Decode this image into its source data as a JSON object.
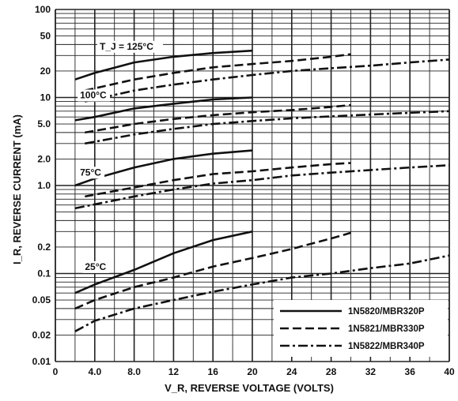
{
  "chart_data": {
    "type": "line",
    "title": "",
    "xlabel": "V_R, REVERSE VOLTAGE (VOLTS)",
    "ylabel": "I_R, REVERSE CURRENT (mA)",
    "xlim": [
      0,
      40
    ],
    "ylim": [
      0.01,
      100
    ],
    "yscale": "log",
    "grid": true,
    "x_ticks": [
      "0",
      "4.0",
      "8.0",
      "12",
      "16",
      "20",
      "24",
      "28",
      "32",
      "36",
      "40"
    ],
    "y_ticks": [
      {
        "value": 100,
        "label": "100"
      },
      {
        "value": 50,
        "label": "50"
      },
      {
        "value": 20,
        "label": "20"
      },
      {
        "value": 10,
        "label": "10"
      },
      {
        "value": 5,
        "label": "5.0"
      },
      {
        "value": 2,
        "label": "2.0"
      },
      {
        "value": 1,
        "label": "1.0"
      },
      {
        "value": 0.2,
        "label": "0.2"
      },
      {
        "value": 0.1,
        "label": "0.1"
      },
      {
        "value": 0.05,
        "label": "0.05"
      },
      {
        "value": 0.02,
        "label": "0.02"
      },
      {
        "value": 0.01,
        "label": "0.01"
      }
    ],
    "temperature_labels": [
      {
        "text": "T_J = 125°C",
        "x": 4.5,
        "y": 35
      },
      {
        "text": "100°C",
        "x": 2.5,
        "y": 9.8
      },
      {
        "text": "75°C",
        "x": 2.5,
        "y": 1.3
      },
      {
        "text": "25°C",
        "x": 3.0,
        "y": 0.11
      }
    ],
    "legend_position": "bottom-right",
    "series": [
      {
        "name": "1N5820/MBR320P",
        "style": "solid",
        "temperature": "125°C",
        "points": [
          [
            2,
            16
          ],
          [
            4,
            19
          ],
          [
            8,
            25
          ],
          [
            12,
            29
          ],
          [
            16,
            32
          ],
          [
            20,
            34
          ]
        ]
      },
      {
        "name": "1N5821/MBR330P",
        "style": "dashed",
        "temperature": "125°C",
        "points": [
          [
            3,
            12
          ],
          [
            8,
            16
          ],
          [
            12,
            19
          ],
          [
            16,
            22
          ],
          [
            20,
            24
          ],
          [
            24,
            26
          ],
          [
            28,
            29
          ],
          [
            30,
            31
          ]
        ]
      },
      {
        "name": "1N5822/MBR340P",
        "style": "dashdot",
        "temperature": "125°C",
        "points": [
          [
            3,
            9
          ],
          [
            8,
            12
          ],
          [
            12,
            14
          ],
          [
            16,
            16
          ],
          [
            20,
            18
          ],
          [
            24,
            20
          ],
          [
            28,
            21.5
          ],
          [
            32,
            23
          ],
          [
            36,
            25
          ],
          [
            40,
            27
          ]
        ]
      },
      {
        "name": "1N5820/MBR320P",
        "style": "solid",
        "temperature": "100°C",
        "points": [
          [
            2,
            5.5
          ],
          [
            4,
            6
          ],
          [
            8,
            7.5
          ],
          [
            12,
            8.5
          ],
          [
            16,
            9.5
          ],
          [
            20,
            10
          ]
        ]
      },
      {
        "name": "1N5821/MBR330P",
        "style": "dashed",
        "temperature": "100°C",
        "points": [
          [
            3,
            4
          ],
          [
            8,
            5
          ],
          [
            12,
            5.7
          ],
          [
            16,
            6.3
          ],
          [
            20,
            6.8
          ],
          [
            24,
            7.2
          ],
          [
            28,
            7.8
          ],
          [
            30,
            8.2
          ]
        ]
      },
      {
        "name": "1N5822/MBR340P",
        "style": "dashdot",
        "temperature": "100°C",
        "points": [
          [
            3,
            3
          ],
          [
            8,
            3.8
          ],
          [
            12,
            4.4
          ],
          [
            16,
            5
          ],
          [
            20,
            5.4
          ],
          [
            24,
            5.8
          ],
          [
            28,
            6.1
          ],
          [
            32,
            6.4
          ],
          [
            36,
            6.7
          ],
          [
            40,
            7
          ]
        ]
      },
      {
        "name": "1N5820/MBR320P",
        "style": "solid",
        "temperature": "75°C",
        "points": [
          [
            2,
            1
          ],
          [
            4,
            1.2
          ],
          [
            8,
            1.6
          ],
          [
            12,
            2
          ],
          [
            16,
            2.3
          ],
          [
            20,
            2.5
          ]
        ]
      },
      {
        "name": "1N5821/MBR330P",
        "style": "dashed",
        "temperature": "75°C",
        "points": [
          [
            3,
            0.75
          ],
          [
            8,
            0.95
          ],
          [
            12,
            1.15
          ],
          [
            16,
            1.35
          ],
          [
            20,
            1.45
          ],
          [
            24,
            1.6
          ],
          [
            28,
            1.75
          ],
          [
            30,
            1.8
          ]
        ]
      },
      {
        "name": "1N5822/MBR340P",
        "style": "dashdot",
        "temperature": "75°C",
        "points": [
          [
            2,
            0.55
          ],
          [
            8,
            0.75
          ],
          [
            12,
            0.9
          ],
          [
            16,
            1.05
          ],
          [
            20,
            1.15
          ],
          [
            24,
            1.3
          ],
          [
            28,
            1.4
          ],
          [
            32,
            1.5
          ],
          [
            36,
            1.6
          ],
          [
            40,
            1.7
          ]
        ]
      },
      {
        "name": "1N5820/MBR320P",
        "style": "solid",
        "temperature": "25°C",
        "points": [
          [
            2,
            0.06
          ],
          [
            4,
            0.075
          ],
          [
            8,
            0.11
          ],
          [
            12,
            0.17
          ],
          [
            16,
            0.24
          ],
          [
            20,
            0.3
          ]
        ]
      },
      {
        "name": "1N5821/MBR330P",
        "style": "dashed",
        "temperature": "25°C",
        "points": [
          [
            2,
            0.04
          ],
          [
            4,
            0.05
          ],
          [
            8,
            0.07
          ],
          [
            12,
            0.09
          ],
          [
            16,
            0.12
          ],
          [
            20,
            0.15
          ],
          [
            24,
            0.19
          ],
          [
            28,
            0.25
          ],
          [
            30,
            0.29
          ]
        ]
      },
      {
        "name": "1N5822/MBR340P",
        "style": "dashdot",
        "temperature": "25°C",
        "points": [
          [
            2,
            0.022
          ],
          [
            4,
            0.029
          ],
          [
            8,
            0.04
          ],
          [
            12,
            0.05
          ],
          [
            16,
            0.062
          ],
          [
            20,
            0.075
          ],
          [
            24,
            0.09
          ],
          [
            28,
            0.1
          ],
          [
            32,
            0.115
          ],
          [
            36,
            0.13
          ],
          [
            40,
            0.16
          ]
        ]
      }
    ],
    "legend": [
      {
        "label": "1N5820/MBR320P",
        "style": "solid"
      },
      {
        "label": "1N5821/MBR330P",
        "style": "dashed"
      },
      {
        "label": "1N5822/MBR340P",
        "style": "dashdot"
      }
    ]
  },
  "colors": {
    "line": "#111111",
    "grid": "#222222",
    "background": "#ffffff"
  }
}
